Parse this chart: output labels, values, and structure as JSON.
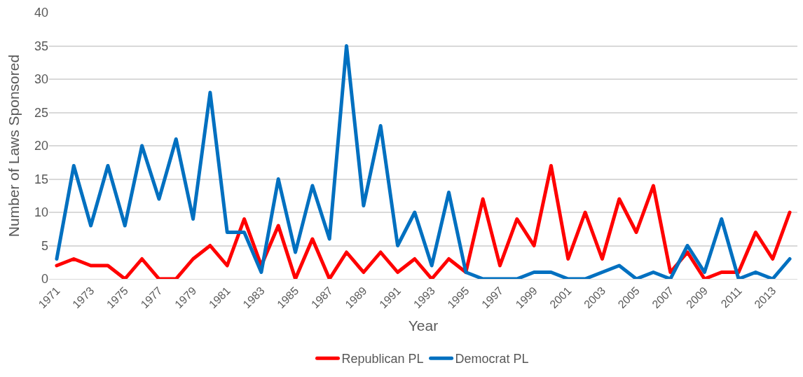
{
  "chart_data": {
    "type": "line",
    "xlabel": "Year",
    "ylabel": "Number of Laws Sponsored",
    "categories": [
      "1971",
      null,
      "1973",
      null,
      "1975",
      null,
      "1977",
      null,
      "1979",
      null,
      "1981",
      null,
      "1983",
      null,
      "1985",
      null,
      "1987",
      null,
      "1989",
      null,
      "1991",
      null,
      "1993",
      null,
      "1995",
      null,
      "1997",
      null,
      "1999",
      null,
      "2001",
      null,
      "2003",
      null,
      "2005",
      null,
      "2007",
      null,
      "2009",
      null,
      "2011",
      null,
      "2013",
      null
    ],
    "series": [
      {
        "name": "Republican PL",
        "color": "#ff0000",
        "values": [
          2,
          3,
          2,
          2,
          0,
          3,
          0,
          0,
          3,
          5,
          2,
          9,
          2,
          8,
          0,
          6,
          0,
          4,
          1,
          4,
          1,
          3,
          0,
          3,
          1,
          12,
          2,
          9,
          5,
          17,
          3,
          10,
          3,
          12,
          7,
          14,
          1,
          4,
          0,
          1,
          1,
          7,
          3,
          10
        ]
      },
      {
        "name": "Democrat PL",
        "color": "#0070c0",
        "values": [
          3,
          17,
          8,
          17,
          8,
          20,
          12,
          21,
          9,
          28,
          7,
          7,
          1,
          15,
          4,
          14,
          6,
          35,
          11,
          23,
          5,
          10,
          2,
          13,
          1,
          0,
          0,
          0,
          1,
          1,
          0,
          0,
          1,
          2,
          0,
          1,
          0,
          5,
          1,
          9,
          0,
          1,
          0,
          3
        ]
      }
    ],
    "ylim": [
      0,
      40
    ],
    "yticks": [
      0,
      5,
      10,
      15,
      20,
      25,
      30,
      35,
      40
    ],
    "grid": "y",
    "legend": "bottom",
    "marker": "none",
    "line_style": "solid"
  }
}
